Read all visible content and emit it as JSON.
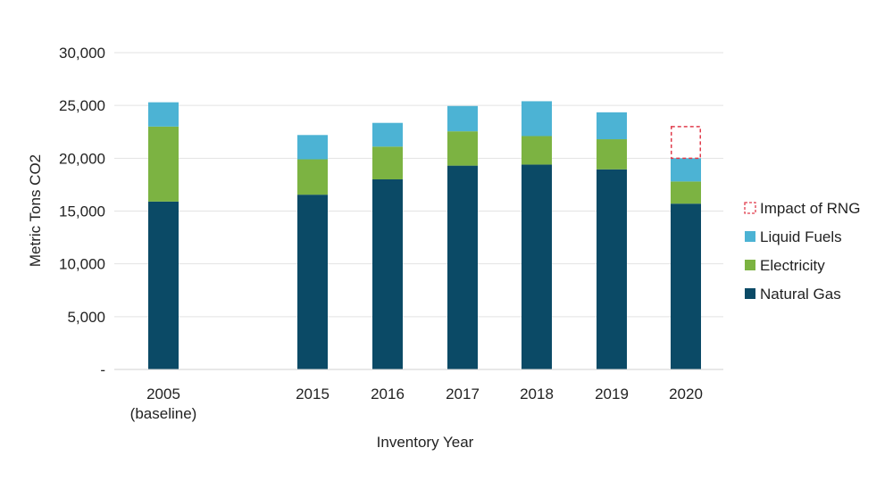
{
  "chart_data": {
    "type": "bar",
    "stacked": true,
    "categories": [
      "2005",
      "2015",
      "2016",
      "2017",
      "2018",
      "2019",
      "2020"
    ],
    "category_labels": [
      [
        "2005",
        "(baseline)"
      ],
      [
        "2015"
      ],
      [
        "2016"
      ],
      [
        "2017"
      ],
      [
        "2018"
      ],
      [
        "2019"
      ],
      [
        "2020"
      ]
    ],
    "series": [
      {
        "name": "Natural Gas",
        "color": "#0b4a66",
        "values": [
          15900,
          16550,
          18000,
          19300,
          19400,
          18950,
          15700
        ]
      },
      {
        "name": "Electricity",
        "color": "#7cb342",
        "values": [
          7100,
          3350,
          3100,
          3250,
          2700,
          2850,
          2100
        ]
      },
      {
        "name": "Liquid Fuels",
        "color": "#4cb3d4",
        "values": [
          2300,
          2300,
          2250,
          2400,
          3300,
          2550,
          2200
        ]
      },
      {
        "name": "Impact of RNG",
        "color": "#e03c4c",
        "style": "dashed-outline",
        "values": [
          0,
          0,
          0,
          0,
          0,
          0,
          3000
        ]
      }
    ],
    "legend_order": [
      "Impact of RNG",
      "Liquid Fuels",
      "Electricity",
      "Natural Gas"
    ],
    "xlabel": "Inventory Year",
    "ylabel": "Metric Tons CO2",
    "ylim": [
      0,
      30000
    ],
    "yticks": [
      0,
      5000,
      10000,
      15000,
      20000,
      25000,
      30000
    ],
    "ytick_labels": [
      "-",
      "5,000",
      "10,000",
      "15,000",
      "20,000",
      "25,000",
      "30,000"
    ],
    "grid": true,
    "legend_position": "right"
  }
}
